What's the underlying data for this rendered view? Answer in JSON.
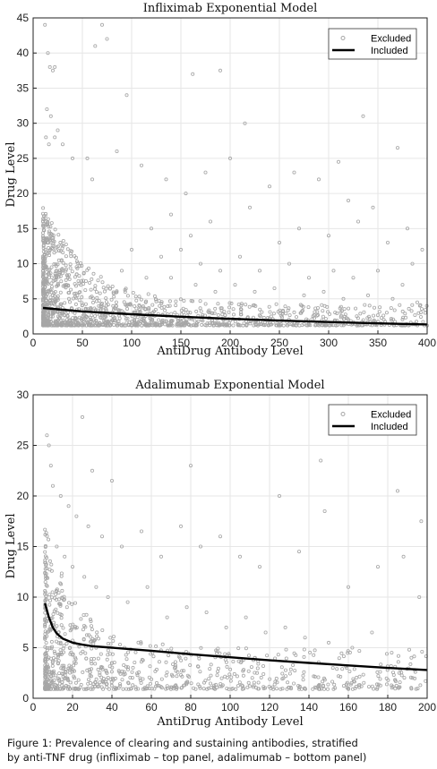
{
  "caption": {
    "line1": "Figure 1: Prevalence of clearing and sustaining antibodies, stratified",
    "line2": "by anti-TNF drug (infliximab – top panel, adalimumab – bottom panel)"
  },
  "colors": {
    "excluded": "#a6a6a6",
    "included": "#000000",
    "grid": "#e6e6e6"
  },
  "chart_data": [
    {
      "type": "scatter",
      "title": "Infliximab Exponential Model",
      "xlabel": "AntiDrug Antibody Level",
      "ylabel": "Drug Level",
      "xlim": [
        0,
        400
      ],
      "ylim": [
        0,
        45
      ],
      "xticks": [
        0,
        50,
        100,
        150,
        200,
        250,
        300,
        350,
        400
      ],
      "yticks": [
        0,
        5,
        10,
        15,
        20,
        25,
        30,
        35,
        40,
        45
      ],
      "grid": true,
      "legend_position": "top-right",
      "series": [
        {
          "name": "Excluded",
          "kind": "scatter",
          "points": [
            [
              12,
              44
            ],
            [
              15,
              40
            ],
            [
              17,
              38
            ],
            [
              20,
              37.5
            ],
            [
              22,
              38
            ],
            [
              63,
              41
            ],
            [
              70,
              44
            ],
            [
              75,
              42
            ],
            [
              95,
              34
            ],
            [
              162,
              37
            ],
            [
              190,
              37.5
            ],
            [
              335,
              31
            ],
            [
              370,
              26.5
            ],
            [
              14,
              32
            ],
            [
              18,
              31
            ],
            [
              13,
              28
            ],
            [
              16,
              27
            ],
            [
              22,
              28
            ],
            [
              25,
              29
            ],
            [
              30,
              27
            ],
            [
              40,
              25
            ],
            [
              55,
              25
            ],
            [
              60,
              22
            ],
            [
              85,
              26
            ],
            [
              110,
              24
            ],
            [
              135,
              22
            ],
            [
              155,
              20
            ],
            [
              175,
              23
            ],
            [
              200,
              25
            ],
            [
              215,
              30
            ],
            [
              240,
              21
            ],
            [
              265,
              23
            ],
            [
              290,
              22
            ],
            [
              310,
              24.5
            ],
            [
              320,
              19
            ],
            [
              345,
              18
            ],
            [
              380,
              15
            ],
            [
              395,
              12
            ],
            [
              120,
              15
            ],
            [
              140,
              17
            ],
            [
              160,
              14
            ],
            [
              180,
              16
            ],
            [
              220,
              18
            ],
            [
              250,
              13
            ],
            [
              270,
              15
            ],
            [
              300,
              14
            ],
            [
              330,
              16
            ],
            [
              360,
              13
            ],
            [
              385,
              10
            ],
            [
              100,
              12
            ],
            [
              130,
              11
            ],
            [
              150,
              12
            ],
            [
              170,
              10
            ],
            [
              190,
              9
            ],
            [
              210,
              11
            ],
            [
              230,
              9
            ],
            [
              260,
              10
            ],
            [
              280,
              8
            ],
            [
              305,
              9
            ],
            [
              325,
              8
            ],
            [
              350,
              9
            ],
            [
              375,
              7
            ],
            [
              90,
              9
            ],
            [
              115,
              8
            ],
            [
              140,
              8
            ],
            [
              165,
              7
            ],
            [
              185,
              6
            ],
            [
              205,
              7
            ],
            [
              225,
              6
            ],
            [
              245,
              6.5
            ],
            [
              275,
              5.5
            ],
            [
              295,
              6
            ],
            [
              315,
              5
            ],
            [
              340,
              5.5
            ],
            [
              365,
              5
            ],
            [
              390,
              4.5
            ],
            [
              398,
              3
            ]
          ]
        },
        {
          "name": "Included",
          "kind": "line",
          "x": [
            10,
            50,
            100,
            150,
            200,
            250,
            300,
            350,
            400
          ],
          "y": [
            3.7,
            3.2,
            2.8,
            2.45,
            2.15,
            1.9,
            1.7,
            1.5,
            1.35
          ]
        }
      ]
    },
    {
      "type": "scatter",
      "title": "Adalimumab Exponential Model",
      "xlabel": "AntiDrug Antibody Level",
      "ylabel": "Drug Level",
      "xlim": [
        0,
        200
      ],
      "ylim": [
        0,
        30
      ],
      "xticks": [
        0,
        20,
        40,
        60,
        80,
        100,
        120,
        140,
        160,
        180,
        200
      ],
      "yticks": [
        0,
        5,
        10,
        15,
        20,
        25,
        30
      ],
      "grid": true,
      "legend_position": "top-right",
      "series": [
        {
          "name": "Excluded",
          "kind": "scatter",
          "points": [
            [
              7,
              26
            ],
            [
              8,
              25
            ],
            [
              9,
              23
            ],
            [
              25,
              27.8
            ],
            [
              30,
              22.5
            ],
            [
              40,
              21.5
            ],
            [
              80,
              23
            ],
            [
              146,
              23.5
            ],
            [
              185,
              20.5
            ],
            [
              197,
              17.5
            ],
            [
              10,
              21
            ],
            [
              14,
              20
            ],
            [
              18,
              19
            ],
            [
              22,
              18
            ],
            [
              28,
              17
            ],
            [
              35,
              16
            ],
            [
              45,
              15
            ],
            [
              55,
              16.5
            ],
            [
              65,
              14
            ],
            [
              75,
              17
            ],
            [
              85,
              15
            ],
            [
              95,
              16
            ],
            [
              105,
              14
            ],
            [
              115,
              13
            ],
            [
              125,
              20
            ],
            [
              135,
              14.5
            ],
            [
              148,
              18.5
            ],
            [
              160,
              11
            ],
            [
              175,
              13
            ],
            [
              188,
              14
            ],
            [
              196,
              10
            ],
            [
              12,
              15
            ],
            [
              16,
              14
            ],
            [
              20,
              13
            ],
            [
              26,
              12
            ],
            [
              32,
              11
            ],
            [
              38,
              10
            ],
            [
              48,
              9.5
            ],
            [
              58,
              11
            ],
            [
              68,
              8
            ],
            [
              78,
              9
            ],
            [
              88,
              8.5
            ],
            [
              98,
              7
            ],
            [
              108,
              8
            ],
            [
              118,
              6.5
            ],
            [
              128,
              7
            ],
            [
              138,
              6
            ],
            [
              150,
              5.5
            ],
            [
              162,
              5
            ],
            [
              172,
              6.5
            ],
            [
              182,
              4.5
            ],
            [
              192,
              4
            ]
          ]
        },
        {
          "name": "Included",
          "kind": "line",
          "x": [
            6,
            8,
            10,
            12,
            15,
            20,
            25,
            30,
            40,
            60,
            80,
            100,
            120,
            140,
            160,
            180,
            200
          ],
          "y": [
            9.4,
            8.0,
            7.0,
            6.4,
            5.9,
            5.5,
            5.3,
            5.15,
            5.0,
            4.7,
            4.35,
            4.05,
            3.75,
            3.5,
            3.25,
            3.0,
            2.8
          ]
        }
      ]
    }
  ]
}
